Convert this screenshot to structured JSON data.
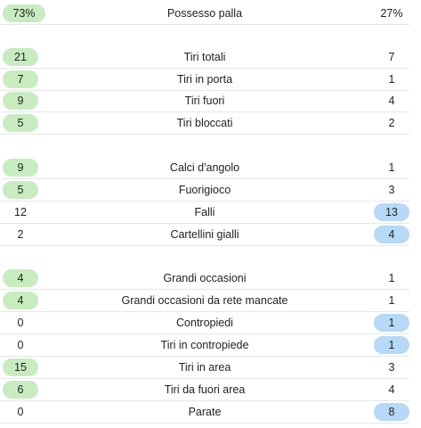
{
  "stats": [
    {
      "label": "Possesso palla",
      "home": "73%",
      "away": "27%",
      "leader": "home"
    },
    {
      "label": "Tiri totali",
      "home": "21",
      "away": "7",
      "leader": "home"
    },
    {
      "label": "Tiri in porta",
      "home": "7",
      "away": "1",
      "leader": "home"
    },
    {
      "label": "Tiri fuori",
      "home": "9",
      "away": "4",
      "leader": "home"
    },
    {
      "label": "Tiri bloccati",
      "home": "5",
      "away": "2",
      "leader": "home"
    },
    {
      "label": "Calci d'angolo",
      "home": "9",
      "away": "1",
      "leader": "home"
    },
    {
      "label": "Fuorigioco",
      "home": "5",
      "away": "3",
      "leader": "home"
    },
    {
      "label": "Falli",
      "home": "12",
      "away": "13",
      "leader": "away"
    },
    {
      "label": "Cartellini gialli",
      "home": "2",
      "away": "4",
      "leader": "away"
    },
    {
      "label": "Grandi occasioni",
      "home": "4",
      "away": "1",
      "leader": "home"
    },
    {
      "label": "Grandi occasioni da rete mancate",
      "home": "4",
      "away": "1",
      "leader": "home"
    },
    {
      "label": "Contropiedi",
      "home": "0",
      "away": "1",
      "leader": "away"
    },
    {
      "label": "Tiri in contropiede",
      "home": "0",
      "away": "1",
      "leader": "away"
    },
    {
      "label": "Tiri in area",
      "home": "15",
      "away": "3",
      "leader": "home"
    },
    {
      "label": "Tiri da fuori area",
      "home": "6",
      "away": "4",
      "leader": "home"
    },
    {
      "label": "Parate",
      "home": "0",
      "away": "8",
      "leader": "away"
    }
  ],
  "colors": {
    "home_highlight": "#c8ecc0",
    "away_highlight": "#b5d9f6",
    "divider": "#e6e6e6"
  }
}
